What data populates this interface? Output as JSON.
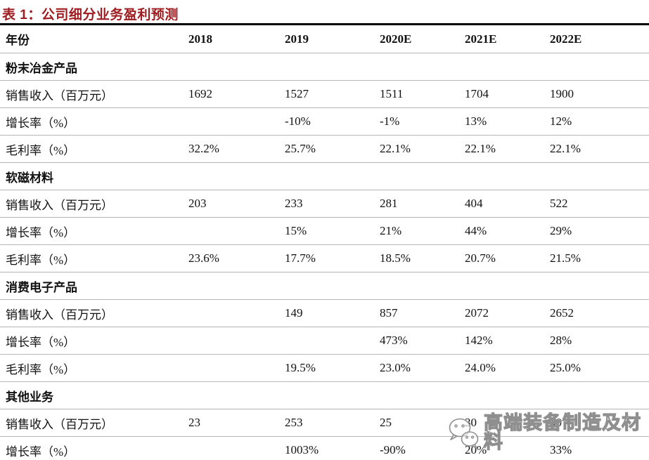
{
  "title": {
    "text": "表 1：公司细分业务盈利预测"
  },
  "table": {
    "columns": [
      "年份",
      "2018",
      "2019",
      "2020E",
      "2021E",
      "2022E"
    ],
    "sections": [
      {
        "name": "粉末冶金产品",
        "rows": [
          {
            "label": "销售收入（百万元）",
            "values": [
              "1692",
              "1527",
              "1511",
              "1704",
              "1900"
            ]
          },
          {
            "label": "增长率（%）",
            "values": [
              "",
              "-10%",
              "-1%",
              "13%",
              "12%"
            ]
          },
          {
            "label": "毛利率（%）",
            "values": [
              "32.2%",
              "25.7%",
              "22.1%",
              "22.1%",
              "22.1%"
            ]
          }
        ]
      },
      {
        "name": "软磁材料",
        "rows": [
          {
            "label": "销售收入（百万元）",
            "values": [
              "203",
              "233",
              "281",
              "404",
              "522"
            ]
          },
          {
            "label": "增长率（%）",
            "values": [
              "",
              "15%",
              "21%",
              "44%",
              "29%"
            ]
          },
          {
            "label": "毛利率（%）",
            "values": [
              "23.6%",
              "17.7%",
              "18.5%",
              "20.7%",
              "21.5%"
            ]
          }
        ]
      },
      {
        "name": "消费电子产品",
        "rows": [
          {
            "label": "销售收入（百万元）",
            "values": [
              "",
              "149",
              "857",
              "2072",
              "2652"
            ]
          },
          {
            "label": "增长率（%）",
            "values": [
              "",
              "",
              "473%",
              "142%",
              "28%"
            ]
          },
          {
            "label": "毛利率（%）",
            "values": [
              "",
              "19.5%",
              "23.0%",
              "24.0%",
              "25.0%"
            ]
          }
        ]
      },
      {
        "name": "其他业务",
        "rows": [
          {
            "label": "销售收入（百万元）",
            "values": [
              "23",
              "253",
              "25",
              "30",
              "40"
            ]
          },
          {
            "label": "增长率（%）",
            "values": [
              "",
              "1003%",
              "-90%",
              "20%",
              "33%"
            ]
          }
        ]
      }
    ]
  },
  "watermark": {
    "icon": "wechat-icon",
    "text": "高端装备制造及材料"
  },
  "colors": {
    "title_red": "#9e1c1f",
    "heavy_rule": "#000000",
    "light_rule": "#b5b5b5",
    "watermark_gray": "#8f8f8f"
  }
}
